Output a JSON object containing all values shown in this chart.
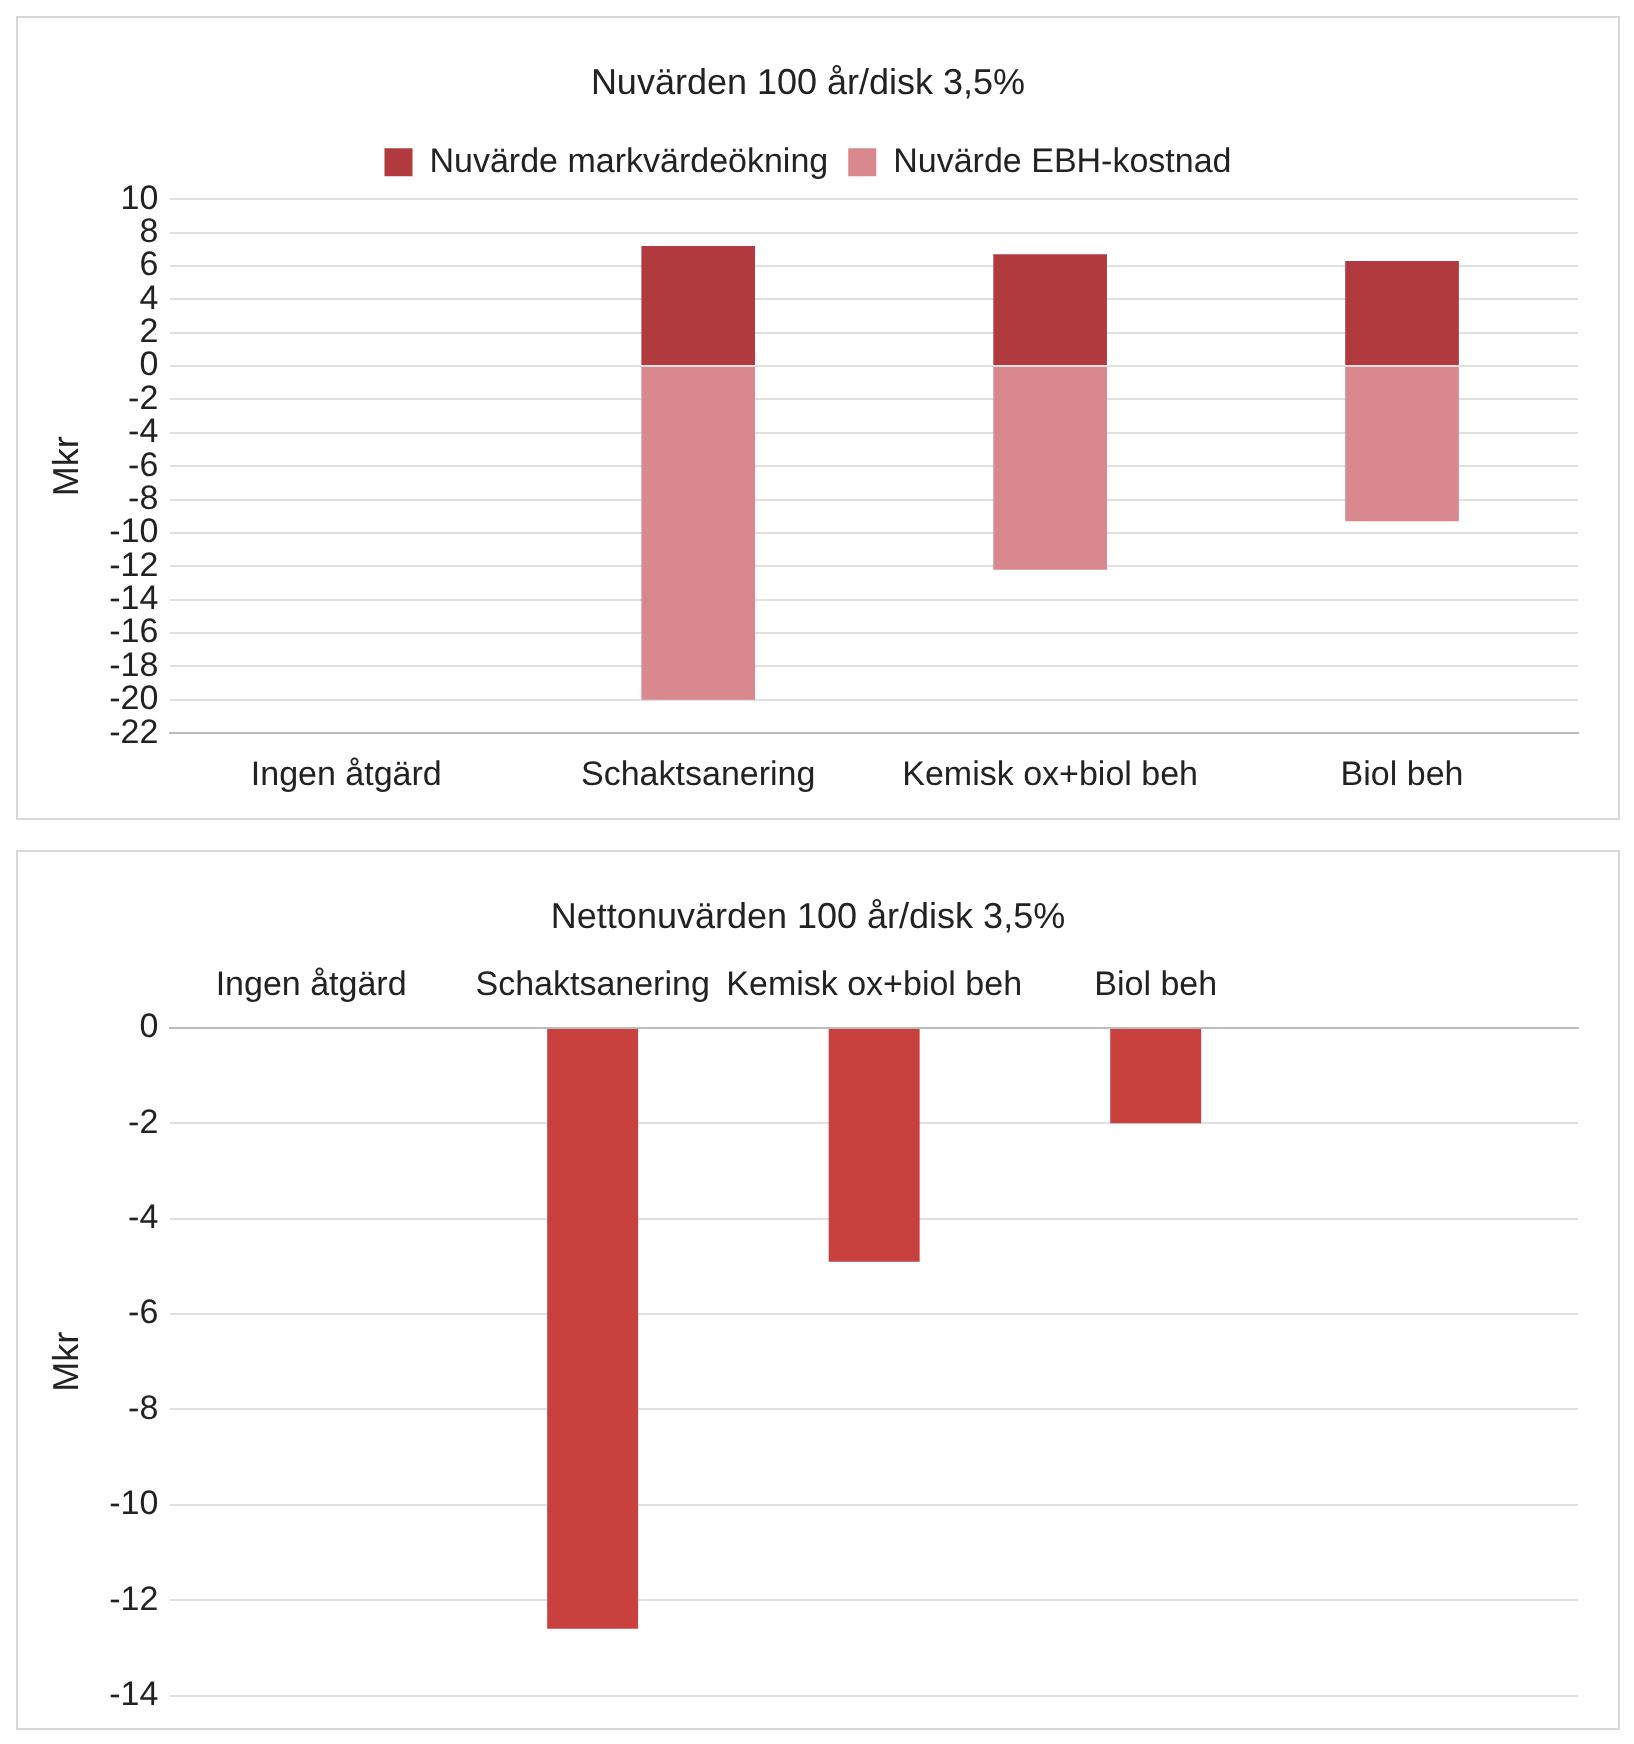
{
  "chart_data": [
    {
      "type": "bar",
      "title": "Nuvärden 100 år/disk 3,5%",
      "ylabel": "Mkr",
      "categories": [
        "Ingen åtgärd",
        "Schaktsanering",
        "Kemisk ox+biol beh",
        "Biol beh"
      ],
      "stacked": true,
      "series": [
        {
          "name": "Nuvärde markvärdeökning",
          "color": "#b03a3e",
          "values": [
            0,
            7.2,
            6.7,
            6.3
          ]
        },
        {
          "name": "Nuvärde EBH-kostnad",
          "color": "#d9888e",
          "values": [
            0,
            -20,
            -12.2,
            -9.3
          ]
        }
      ],
      "ylim": [
        -22,
        10
      ],
      "yticks": [
        -22,
        -20,
        -18,
        -16,
        -14,
        -12,
        -10,
        -8,
        -6,
        -4,
        -2,
        0,
        2,
        4,
        6,
        8,
        10
      ],
      "grid": "y",
      "legend": "top"
    },
    {
      "type": "bar",
      "title": "Nettonuvärden 100 år/disk 3,5%",
      "ylabel": "Mkr",
      "categories": [
        "Ingen åtgärd",
        "Schaktsanering",
        "Kemisk ox+biol beh",
        "Biol beh",
        null
      ],
      "series": [
        {
          "color": "#c9413f",
          "values": [
            0,
            -12.6,
            -4.9,
            -2.0,
            null
          ]
        }
      ],
      "ylim": [
        -14,
        0
      ],
      "yticks": [
        -14,
        -12,
        -10,
        -8,
        -6,
        -4,
        -2,
        0
      ],
      "grid": "y"
    }
  ]
}
